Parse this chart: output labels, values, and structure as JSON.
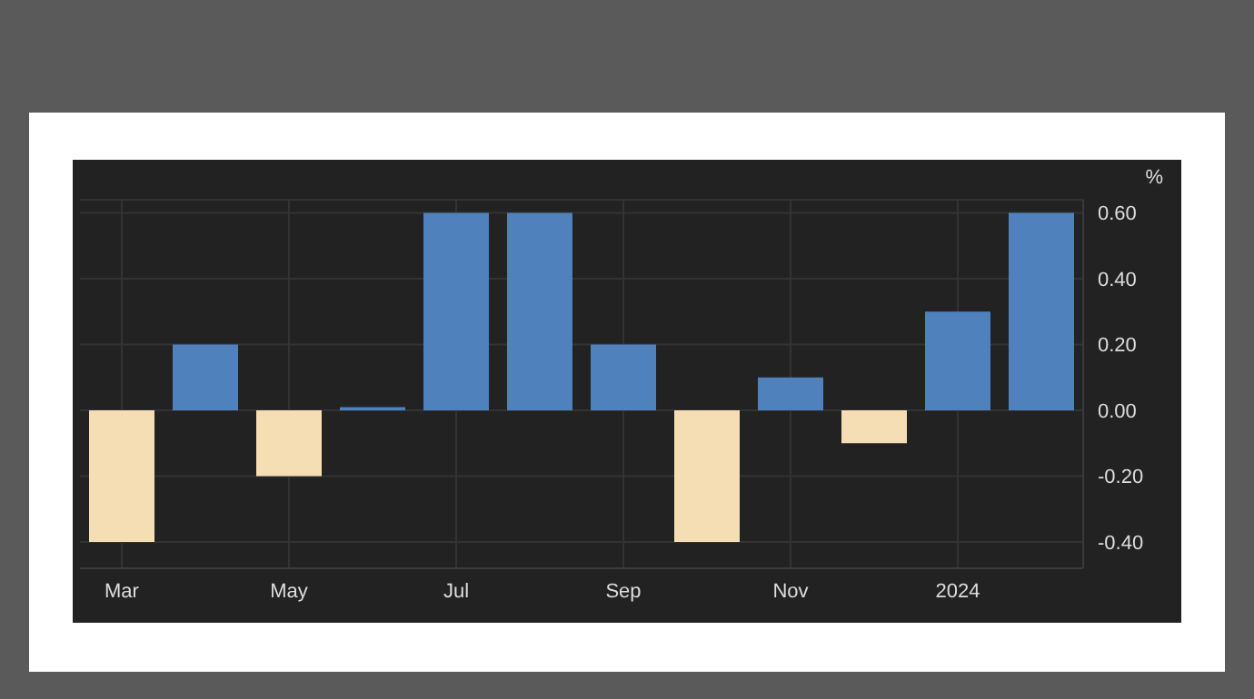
{
  "chart_data": {
    "type": "bar",
    "ylabel": "%",
    "categories": [
      "Mar",
      null,
      "May",
      null,
      "Jul",
      null,
      "Sep",
      null,
      "Nov",
      null,
      "2024",
      null
    ],
    "values": [
      -0.4,
      0.2,
      -0.2,
      0.01,
      0.6,
      0.6,
      0.2,
      -0.4,
      0.1,
      -0.1,
      0.3,
      0.6
    ],
    "colors": [
      "#f5deb3",
      "#4f81bd",
      "#f5deb3",
      "#4f81bd",
      "#4f81bd",
      "#4f81bd",
      "#4f81bd",
      "#f5deb3",
      "#4f81bd",
      "#f5deb3",
      "#4f81bd",
      "#4f81bd"
    ],
    "ylim": [
      -0.48,
      0.64
    ],
    "yticks": [
      {
        "value": -0.4,
        "label": "-0.40"
      },
      {
        "value": -0.2,
        "label": "-0.20"
      },
      {
        "value": 0,
        "label": "0.00"
      },
      {
        "value": 0.2,
        "label": "0.20"
      },
      {
        "value": 0.4,
        "label": "0.40"
      },
      {
        "value": 0.6,
        "label": "0.60"
      }
    ],
    "grid": true
  }
}
